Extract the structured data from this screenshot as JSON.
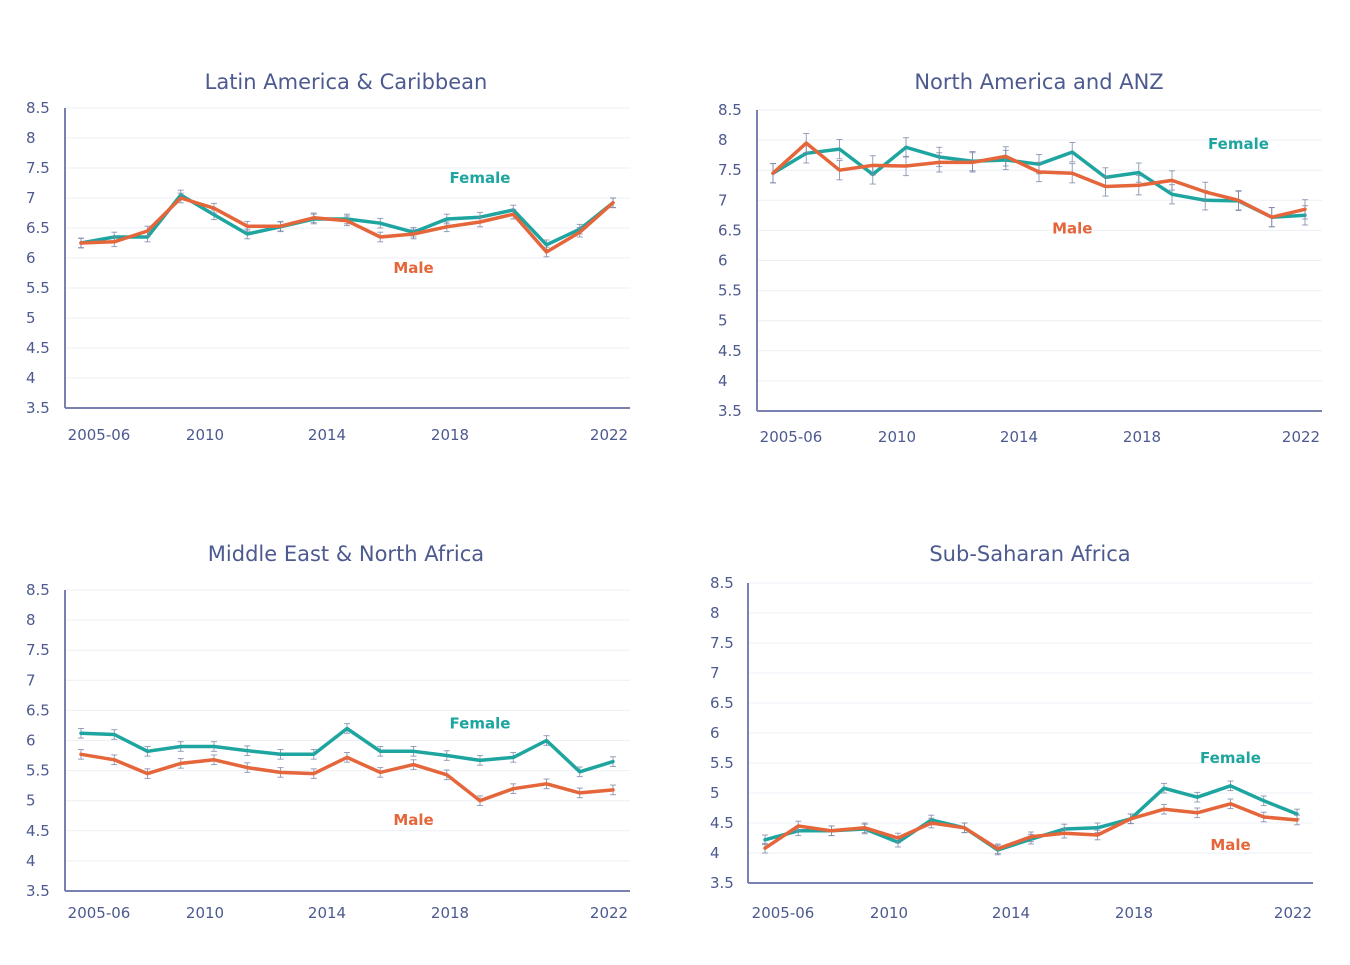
{
  "colors": {
    "female": "#1ea5a0",
    "male": "#e4663a",
    "axis": "#7a80b0",
    "grid": "#eeeff4",
    "text": "#4d5a8f",
    "errorbar": "#7d8aa8"
  },
  "chart_data": [
    {
      "type": "line",
      "title": "Latin America & Caribbean",
      "xlabel": "",
      "ylabel": "",
      "ylim": [
        3.5,
        8.5
      ],
      "yticks": [
        "8.5",
        "8",
        "7.5",
        "7",
        "6.5",
        "6",
        "5.5",
        "5",
        "4.5",
        "4",
        "3.5"
      ],
      "xtick_labels": [
        "2005-06",
        "2010",
        "2014",
        "2018",
        "2022"
      ],
      "x": [
        "2006",
        "2007",
        "2008",
        "2009",
        "2010",
        "2011",
        "2012",
        "2013",
        "2014",
        "2015",
        "2016",
        "2017",
        "2018",
        "2019",
        "2020",
        "2021",
        "2022"
      ],
      "grid": true,
      "series": [
        {
          "name": "Female",
          "values": [
            6.25,
            6.35,
            6.35,
            7.05,
            6.72,
            6.4,
            6.52,
            6.65,
            6.65,
            6.58,
            6.43,
            6.65,
            6.68,
            6.8,
            6.22,
            6.48,
            6.92
          ]
        },
        {
          "name": "Male",
          "values": [
            6.25,
            6.27,
            6.45,
            7.0,
            6.83,
            6.53,
            6.53,
            6.67,
            6.62,
            6.35,
            6.4,
            6.52,
            6.6,
            6.73,
            6.1,
            6.43,
            6.92
          ]
        }
      ],
      "annotations": [
        {
          "text": "Female",
          "series": "Female",
          "x": "2018",
          "y": 7.25
        },
        {
          "text": "Male",
          "series": "Male",
          "x": "2016",
          "y": 5.75
        }
      ]
    },
    {
      "type": "line",
      "title": "North America and ANZ",
      "xlabel": "",
      "ylabel": "",
      "ylim": [
        3.5,
        8.5
      ],
      "yticks": [
        "8.5",
        "8",
        "7.5",
        "7",
        "6.5",
        "6",
        "5.5",
        "5",
        "4.5",
        "4",
        "3.5"
      ],
      "xtick_labels": [
        "2005-06",
        "2010",
        "2014",
        "2018",
        "2022"
      ],
      "x": [
        "2006",
        "2007",
        "2008",
        "2009",
        "2010",
        "2011",
        "2012",
        "2013",
        "2014",
        "2015",
        "2016",
        "2017",
        "2018",
        "2019",
        "2020",
        "2021",
        "2022"
      ],
      "grid": true,
      "series": [
        {
          "name": "Female",
          "values": [
            7.45,
            7.78,
            7.85,
            7.43,
            7.88,
            7.72,
            7.65,
            7.67,
            7.6,
            7.8,
            7.38,
            7.46,
            7.1,
            7.0,
            6.99,
            6.72,
            6.75
          ]
        },
        {
          "name": "Male",
          "values": [
            7.45,
            7.95,
            7.5,
            7.58,
            7.57,
            7.63,
            7.63,
            7.73,
            7.47,
            7.45,
            7.23,
            7.25,
            7.33,
            7.14,
            7.0,
            6.72,
            6.85
          ]
        }
      ],
      "annotations": [
        {
          "text": "Female",
          "series": "Female",
          "x": "2020",
          "y": 7.85
        },
        {
          "text": "Male",
          "series": "Male",
          "x": "2015",
          "y": 6.45
        }
      ]
    },
    {
      "type": "line",
      "title": "Middle East & North Africa",
      "xlabel": "",
      "ylabel": "",
      "ylim": [
        3.5,
        8.5
      ],
      "yticks": [
        "8.5",
        "8",
        "7.5",
        "7",
        "6.5",
        "6",
        "5.5",
        "5",
        "4.5",
        "4",
        "3.5"
      ],
      "xtick_labels": [
        "2005-06",
        "2010",
        "2014",
        "2018",
        "2022"
      ],
      "x": [
        "2006",
        "2007",
        "2008",
        "2009",
        "2010",
        "2011",
        "2012",
        "2013",
        "2014",
        "2015",
        "2016",
        "2017",
        "2018",
        "2019",
        "2020",
        "2021",
        "2022"
      ],
      "grid": true,
      "series": [
        {
          "name": "Female",
          "values": [
            6.12,
            6.1,
            5.82,
            5.9,
            5.9,
            5.83,
            5.77,
            5.77,
            6.2,
            5.82,
            5.82,
            5.75,
            5.67,
            5.72,
            6.0,
            5.48,
            5.65
          ]
        },
        {
          "name": "Male",
          "values": [
            5.77,
            5.68,
            5.45,
            5.62,
            5.68,
            5.55,
            5.47,
            5.45,
            5.72,
            5.47,
            5.6,
            5.43,
            5.0,
            5.2,
            5.28,
            5.13,
            5.18
          ]
        }
      ],
      "annotations": [
        {
          "text": "Female",
          "series": "Female",
          "x": "2018",
          "y": 6.2
        },
        {
          "text": "Male",
          "series": "Male",
          "x": "2016",
          "y": 4.6
        }
      ]
    },
    {
      "type": "line",
      "title": "Sub-Saharan Africa",
      "xlabel": "",
      "ylabel": "",
      "ylim": [
        3.5,
        8.5
      ],
      "yticks": [
        "8.5",
        "8",
        "7.5",
        "7",
        "6.5",
        "6",
        "5.5",
        "5",
        "4.5",
        "4",
        "3.5"
      ],
      "xtick_labels": [
        "2005-06",
        "2010",
        "2014",
        "2018",
        "2022"
      ],
      "x": [
        "2006",
        "2007",
        "2008",
        "2009",
        "2010",
        "2011",
        "2012",
        "2013",
        "2014",
        "2015",
        "2016",
        "2017",
        "2018",
        "2019",
        "2020",
        "2021",
        "2022"
      ],
      "grid": true,
      "series": [
        {
          "name": "Female",
          "values": [
            4.22,
            4.37,
            4.37,
            4.4,
            4.18,
            4.55,
            4.42,
            4.05,
            4.23,
            4.4,
            4.42,
            4.57,
            5.08,
            4.93,
            5.12,
            4.87,
            4.65
          ]
        },
        {
          "name": "Male",
          "values": [
            4.08,
            4.45,
            4.37,
            4.42,
            4.25,
            4.5,
            4.42,
            4.07,
            4.27,
            4.33,
            4.3,
            4.57,
            4.73,
            4.67,
            4.82,
            4.6,
            4.55
          ]
        }
      ],
      "annotations": [
        {
          "text": "Female",
          "series": "Female",
          "x": "2020",
          "y": 5.5
        },
        {
          "text": "Male",
          "series": "Male",
          "x": "2020",
          "y": 4.05
        }
      ]
    }
  ]
}
